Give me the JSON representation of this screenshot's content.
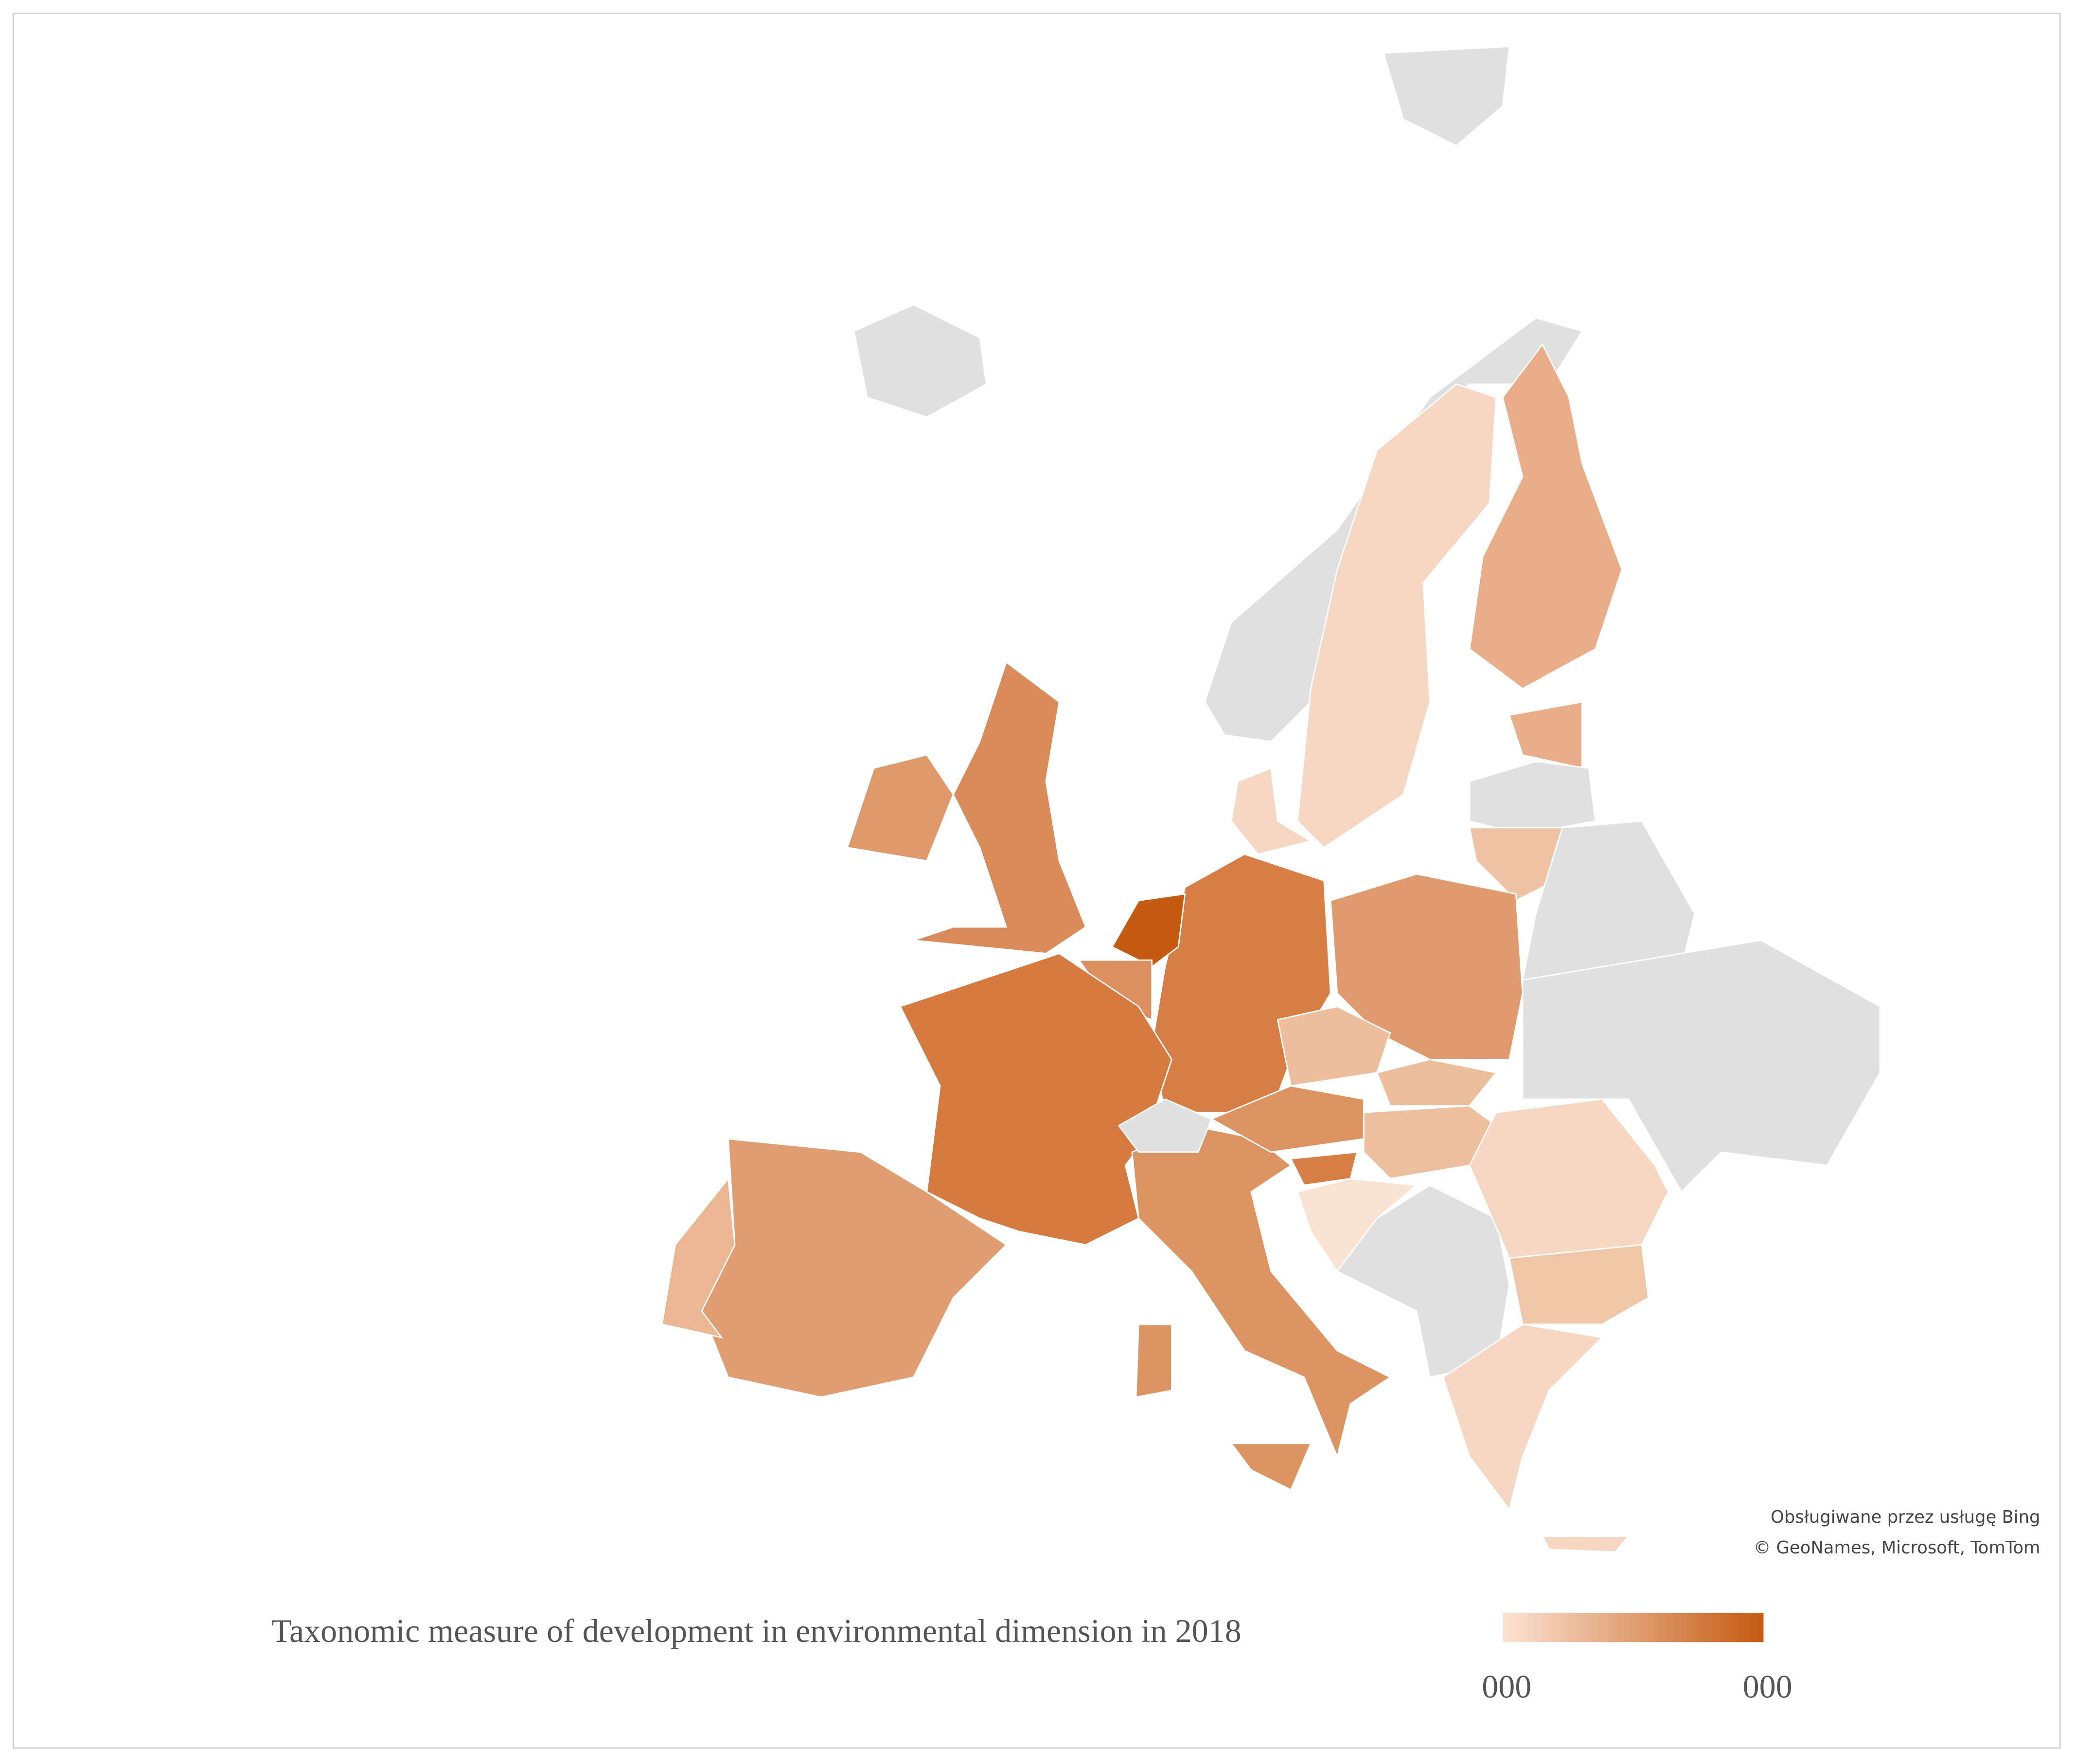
{
  "legend": {
    "title": "Taxonomic measure of development in environmental dimension in 2018",
    "min_label": "000",
    "max_label": "000"
  },
  "attribution": {
    "line1": "Obsługiwane przez usługę Bing",
    "line2": "© GeoNames, Microsoft, TomTom"
  }
}
